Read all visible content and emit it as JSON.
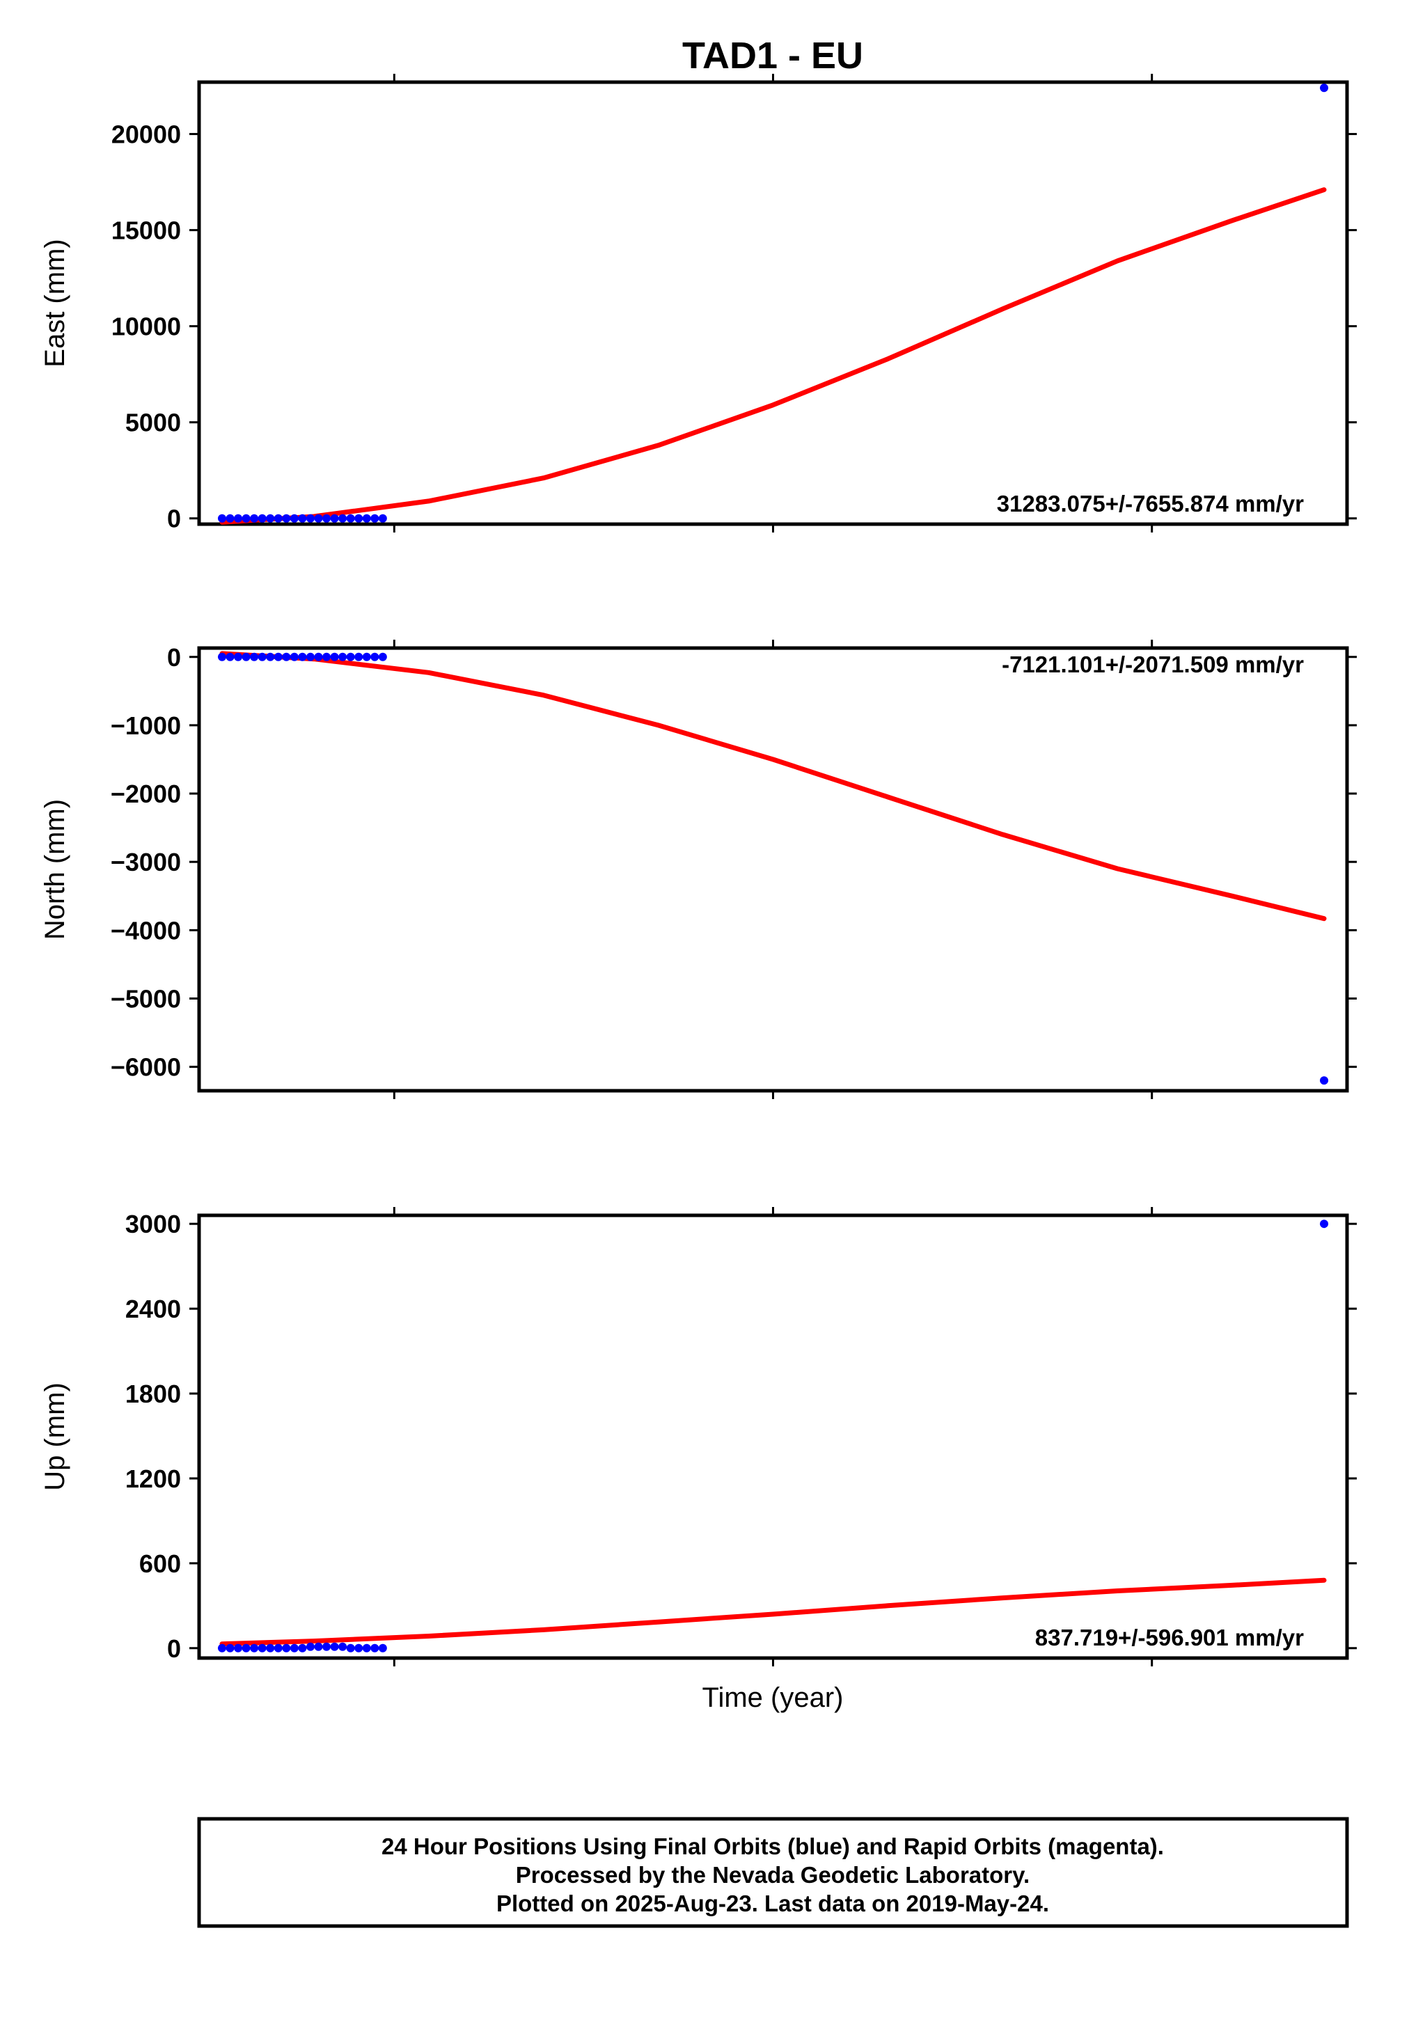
{
  "title": "TAD1 - EU",
  "x_axis_label": "Time (year)",
  "footer": {
    "lines": [
      "24 Hour Positions Using Final Orbits (blue) and Rapid Orbits (magenta).",
      "Processed by the Nevada Geodetic Laboratory.",
      "Plotted on 2025-Aug-23. Last data on 2019-May-24."
    ]
  },
  "colors": {
    "final_orbits": "#0000ff",
    "fit_line": "#ff0000",
    "frame": "#000000"
  },
  "chart_data": [
    {
      "type": "scatter",
      "ylabel": "East (mm)",
      "ylim": [
        -300,
        22700
      ],
      "yticks": [
        0,
        5000,
        10000,
        15000,
        20000
      ],
      "ytick_labels": [
        "0",
        "5000",
        "10000",
        "15000",
        "20000"
      ],
      "annotation": "31283.075+/-7655.874 mm/yr",
      "annotation_position": "bottom-right",
      "points": [
        [
          0.02,
          0
        ],
        [
          0.027,
          0
        ],
        [
          0.034,
          0
        ],
        [
          0.041,
          0
        ],
        [
          0.048,
          0
        ],
        [
          0.055,
          0
        ],
        [
          0.062,
          0
        ],
        [
          0.069,
          0
        ],
        [
          0.076,
          0
        ],
        [
          0.083,
          0
        ],
        [
          0.09,
          0
        ],
        [
          0.097,
          0
        ],
        [
          0.104,
          0
        ],
        [
          0.111,
          0
        ],
        [
          0.118,
          0
        ],
        [
          0.125,
          0
        ],
        [
          0.132,
          0
        ],
        [
          0.139,
          0
        ],
        [
          0.146,
          0
        ],
        [
          0.153,
          0
        ],
        [
          0.16,
          0
        ],
        [
          0.98,
          22400
        ]
      ],
      "fit_line": [
        [
          0.02,
          -200
        ],
        [
          0.1,
          100
        ],
        [
          0.2,
          900
        ],
        [
          0.3,
          2100
        ],
        [
          0.4,
          3800
        ],
        [
          0.5,
          5900
        ],
        [
          0.6,
          8300
        ],
        [
          0.7,
          10900
        ],
        [
          0.8,
          13400
        ],
        [
          0.9,
          15500
        ],
        [
          0.98,
          17100
        ]
      ]
    },
    {
      "type": "scatter",
      "ylabel": "North (mm)",
      "ylim": [
        -6350,
        130
      ],
      "yticks": [
        0,
        -1000,
        -2000,
        -3000,
        -4000,
        -5000,
        -6000
      ],
      "ytick_labels": [
        "0",
        "−1000",
        "−2000",
        "−3000",
        "−4000",
        "−5000",
        "−6000"
      ],
      "annotation": "-7121.101+/-2071.509 mm/yr",
      "annotation_position": "top-right",
      "points": [
        [
          0.02,
          0
        ],
        [
          0.027,
          0
        ],
        [
          0.034,
          0
        ],
        [
          0.041,
          0
        ],
        [
          0.048,
          0
        ],
        [
          0.055,
          0
        ],
        [
          0.062,
          0
        ],
        [
          0.069,
          0
        ],
        [
          0.076,
          0
        ],
        [
          0.083,
          0
        ],
        [
          0.09,
          0
        ],
        [
          0.097,
          0
        ],
        [
          0.104,
          0
        ],
        [
          0.111,
          0
        ],
        [
          0.118,
          0
        ],
        [
          0.125,
          0
        ],
        [
          0.132,
          0
        ],
        [
          0.139,
          0
        ],
        [
          0.146,
          0
        ],
        [
          0.153,
          0
        ],
        [
          0.16,
          0
        ],
        [
          0.98,
          -6200
        ]
      ],
      "fit_line": [
        [
          0.02,
          50
        ],
        [
          0.1,
          -30
        ],
        [
          0.2,
          -230
        ],
        [
          0.3,
          -560
        ],
        [
          0.4,
          -1000
        ],
        [
          0.5,
          -1500
        ],
        [
          0.6,
          -2050
        ],
        [
          0.7,
          -2600
        ],
        [
          0.8,
          -3100
        ],
        [
          0.9,
          -3500
        ],
        [
          0.98,
          -3830
        ]
      ]
    },
    {
      "type": "scatter",
      "ylabel": "Up (mm)",
      "ylim": [
        -70,
        3060
      ],
      "yticks": [
        0,
        600,
        1200,
        1800,
        2400,
        3000
      ],
      "ytick_labels": [
        "0",
        "600",
        "1200",
        "1800",
        "2400",
        "3000"
      ],
      "annotation": "837.719+/-596.901 mm/yr",
      "annotation_position": "bottom-right",
      "points": [
        [
          0.02,
          0
        ],
        [
          0.027,
          0
        ],
        [
          0.034,
          0
        ],
        [
          0.041,
          0
        ],
        [
          0.048,
          0
        ],
        [
          0.055,
          0
        ],
        [
          0.062,
          0
        ],
        [
          0.069,
          0
        ],
        [
          0.076,
          0
        ],
        [
          0.083,
          0
        ],
        [
          0.09,
          0
        ],
        [
          0.097,
          10
        ],
        [
          0.104,
          10
        ],
        [
          0.111,
          10
        ],
        [
          0.118,
          10
        ],
        [
          0.125,
          10
        ],
        [
          0.132,
          0
        ],
        [
          0.139,
          0
        ],
        [
          0.146,
          0
        ],
        [
          0.153,
          0
        ],
        [
          0.16,
          0
        ],
        [
          0.98,
          3000
        ]
      ],
      "fit_line": [
        [
          0.02,
          30
        ],
        [
          0.1,
          50
        ],
        [
          0.2,
          85
        ],
        [
          0.3,
          130
        ],
        [
          0.4,
          185
        ],
        [
          0.5,
          240
        ],
        [
          0.6,
          300
        ],
        [
          0.7,
          355
        ],
        [
          0.8,
          405
        ],
        [
          0.9,
          445
        ],
        [
          0.98,
          480
        ]
      ]
    }
  ]
}
